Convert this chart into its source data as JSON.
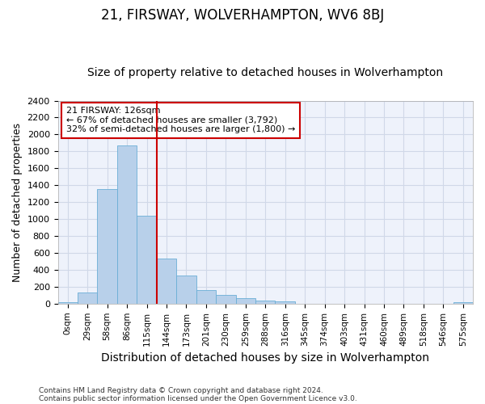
{
  "title1": "21, FIRSWAY, WOLVERHAMPTON, WV6 8BJ",
  "title2": "Size of property relative to detached houses in Wolverhampton",
  "xlabel": "Distribution of detached houses by size in Wolverhampton",
  "ylabel": "Number of detached properties",
  "footer1": "Contains HM Land Registry data © Crown copyright and database right 2024.",
  "footer2": "Contains public sector information licensed under the Open Government Licence v3.0.",
  "bin_labels": [
    "0sqm",
    "29sqm",
    "58sqm",
    "86sqm",
    "115sqm",
    "144sqm",
    "173sqm",
    "201sqm",
    "230sqm",
    "259sqm",
    "288sqm",
    "316sqm",
    "345sqm",
    "374sqm",
    "403sqm",
    "431sqm",
    "460sqm",
    "489sqm",
    "518sqm",
    "546sqm",
    "575sqm"
  ],
  "bar_values": [
    15,
    130,
    1350,
    1870,
    1040,
    530,
    335,
    165,
    105,
    65,
    35,
    25,
    0,
    0,
    0,
    0,
    0,
    0,
    0,
    0,
    15
  ],
  "bar_color": "#b8d0ea",
  "bar_edge_color": "#6aaed6",
  "grid_color": "#d0d8e8",
  "bg_color": "#eef2fb",
  "vline_x_index": 4,
  "vline_color": "#cc0000",
  "annotation_text": "21 FIRSWAY: 126sqm\n← 67% of detached houses are smaller (3,792)\n32% of semi-detached houses are larger (1,800) →",
  "annotation_box_color": "#ffffff",
  "annotation_box_edge_color": "#cc0000",
  "ylim": [
    0,
    2400
  ],
  "yticks": [
    0,
    200,
    400,
    600,
    800,
    1000,
    1200,
    1400,
    1600,
    1800,
    2000,
    2200,
    2400
  ],
  "title1_fontsize": 12,
  "title2_fontsize": 10,
  "ylabel_fontsize": 9,
  "xlabel_fontsize": 10
}
